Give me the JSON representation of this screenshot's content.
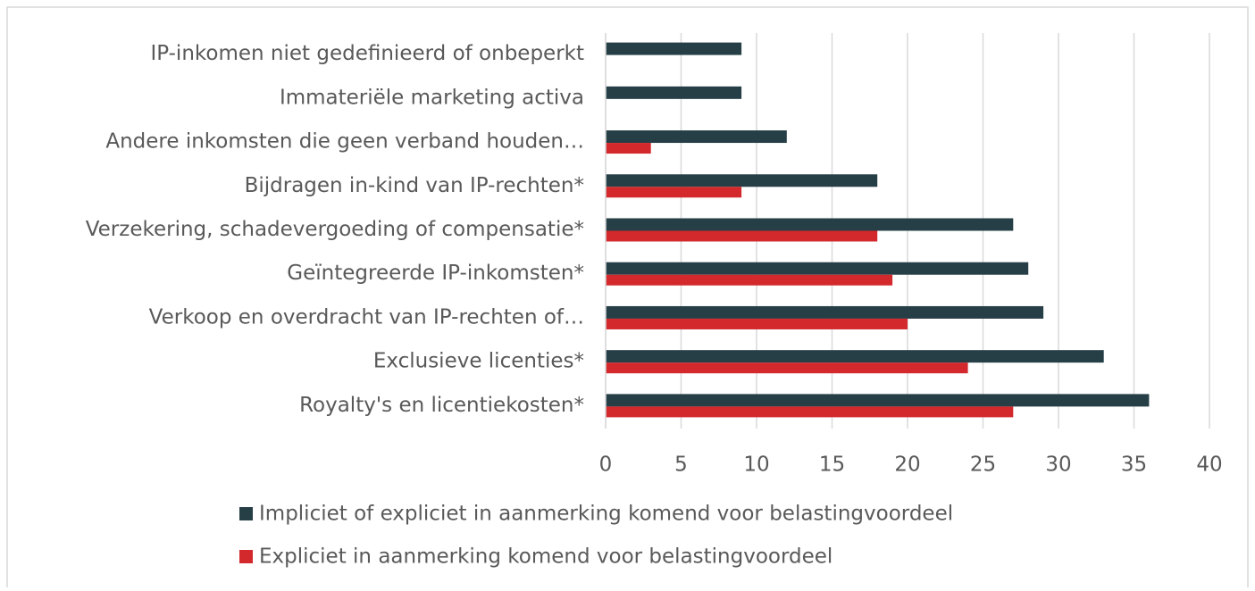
{
  "chart_data": {
    "type": "hbar",
    "categories": [
      "IP-inkomen niet gedefinieerd of onbeperkt",
      "Immateriële marketing activa",
      "Andere inkomsten die geen verband houden…",
      "Bijdragen in-kind van IP-rechten*",
      "Verzekering, schadevergoeding of compensatie*",
      "Geïntegreerde IP-inkomsten*",
      "Verkoop en overdracht van IP-rechten of…",
      "Exclusieve licenties*",
      "Royalty's en licentiekosten*"
    ],
    "series": [
      {
        "name": "Impliciet of expliciet in aanmerking komend voor belastingvoordeel",
        "color": "#263f46",
        "values": [
          9,
          9,
          12,
          18,
          27,
          28,
          29,
          33,
          36
        ]
      },
      {
        "name": "Expliciet in aanmerking komend voor belastingvoordeel",
        "color": "#d3282c",
        "values": [
          0,
          0,
          3,
          9,
          18,
          19,
          20,
          24,
          27
        ]
      }
    ],
    "xlim": [
      0,
      40
    ],
    "xticks": [
      0,
      5,
      10,
      15,
      20,
      25,
      30,
      35,
      40
    ],
    "grid": true,
    "legend": "bottom"
  }
}
